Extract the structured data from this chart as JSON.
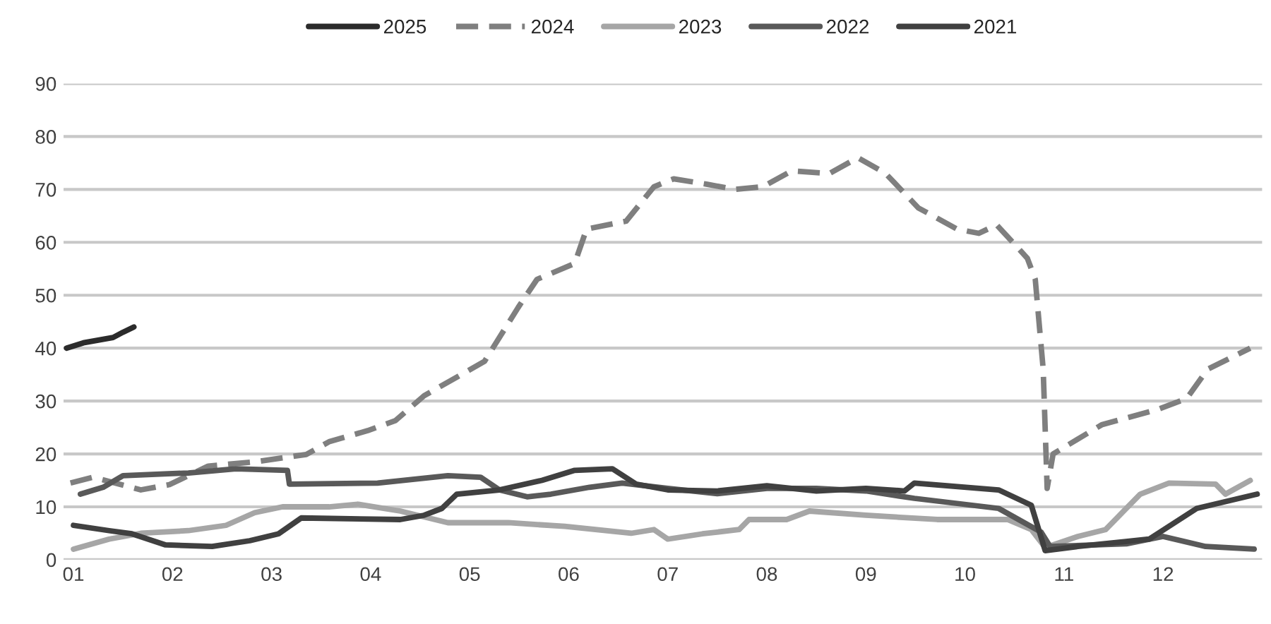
{
  "chart_data": {
    "type": "line",
    "xlim": [
      0.9,
      13.0
    ],
    "xticks": [
      {
        "value": 1,
        "label": "01"
      },
      {
        "value": 2,
        "label": "02"
      },
      {
        "value": 3,
        "label": "03"
      },
      {
        "value": 4,
        "label": "04"
      },
      {
        "value": 5,
        "label": "05"
      },
      {
        "value": 6,
        "label": "06"
      },
      {
        "value": 7,
        "label": "07"
      },
      {
        "value": 8,
        "label": "08"
      },
      {
        "value": 9,
        "label": "09"
      },
      {
        "value": 10,
        "label": "10"
      },
      {
        "value": 11,
        "label": "11"
      },
      {
        "value": 12,
        "label": "12"
      }
    ],
    "ylim": [
      0,
      90
    ],
    "yticks": [
      0,
      10,
      20,
      30,
      40,
      50,
      60,
      70,
      80,
      90
    ],
    "grid": "y",
    "legend": "top",
    "series": [
      {
        "name": "2025",
        "color": "#2b2b2b",
        "line_style": "solid",
        "x": [
          0.93,
          1.1,
          1.25,
          1.4,
          1.5,
          1.61
        ],
        "values": [
          40,
          41,
          41.5,
          42,
          43,
          44
        ]
      },
      {
        "name": "2024",
        "color": "#7f7f7f",
        "line_style": "dashed",
        "x": [
          0.97,
          1.2,
          1.68,
          1.97,
          2.36,
          2.83,
          3.35,
          3.58,
          3.97,
          4.25,
          4.54,
          5.15,
          5.49,
          5.68,
          6.06,
          6.18,
          6.58,
          6.86,
          7.06,
          7.39,
          7.68,
          7.96,
          8.25,
          8.63,
          8.92,
          9.2,
          9.53,
          9.92,
          10.14,
          10.32,
          10.63,
          10.71,
          10.79,
          10.83,
          10.89,
          11.38,
          11.96,
          12.24,
          12.45,
          12.88
        ],
        "values": [
          14.5,
          15.6,
          13.2,
          14.2,
          17.7,
          18.5,
          19.9,
          22.3,
          24.4,
          26.3,
          31,
          37.5,
          47.7,
          53,
          56,
          62.5,
          64,
          70.5,
          72,
          71,
          70,
          70.5,
          73.5,
          73,
          76,
          73,
          66.5,
          62.5,
          61.7,
          63.3,
          57,
          53,
          36,
          13.5,
          20,
          25.5,
          28.5,
          30.5,
          36,
          40
        ]
      },
      {
        "name": "2023",
        "color": "#a6a6a6",
        "line_style": "solid",
        "x": [
          1.0,
          1.36,
          1.68,
          2.16,
          2.54,
          2.83,
          3.11,
          3.58,
          3.87,
          4.3,
          4.78,
          5.39,
          5.96,
          6.63,
          6.86,
          7.0,
          7.35,
          7.72,
          7.82,
          8.2,
          8.43,
          9.0,
          9.72,
          10.43,
          10.67,
          10.81,
          11.14,
          11.42,
          11.77,
          12.06,
          12.53,
          12.63,
          12.88
        ],
        "values": [
          2,
          3.9,
          5,
          5.5,
          6.5,
          8.9,
          10,
          10,
          10.5,
          9.2,
          7,
          7,
          6.3,
          5,
          5.7,
          3.9,
          4.9,
          5.7,
          7.6,
          7.6,
          9.2,
          8.4,
          7.6,
          7.6,
          5.7,
          2.3,
          4.4,
          5.7,
          12.4,
          14.5,
          14.3,
          12.4,
          15
        ]
      },
      {
        "name": "2022",
        "color": "#595959",
        "line_style": "solid",
        "x": [
          1.07,
          1.3,
          1.5,
          2.16,
          2.64,
          3.16,
          3.18,
          4.07,
          4.78,
          5.11,
          5.3,
          5.58,
          5.82,
          6.21,
          6.54,
          7.0,
          7.5,
          8.0,
          8.5,
          9.0,
          9.49,
          10.34,
          10.77,
          10.86,
          11.63,
          12.0,
          12.43,
          12.92
        ],
        "values": [
          12.4,
          13.7,
          15.9,
          16.4,
          17.2,
          16.9,
          14.3,
          14.5,
          15.9,
          15.6,
          13.2,
          11.9,
          12.4,
          13.7,
          14.5,
          13.5,
          12.5,
          13.5,
          13.5,
          13,
          11.6,
          9.7,
          5.2,
          2.5,
          3,
          4.4,
          2.5,
          2
        ]
      },
      {
        "name": "2021",
        "color": "#404040",
        "line_style": "solid",
        "x": [
          1.0,
          1.36,
          1.59,
          1.93,
          2.4,
          2.78,
          3.07,
          3.3,
          4.3,
          4.54,
          4.72,
          4.87,
          5.3,
          5.73,
          6.06,
          6.44,
          6.68,
          7.0,
          7.5,
          8.0,
          8.5,
          9.0,
          9.39,
          9.49,
          10.34,
          10.67,
          10.81,
          11.14,
          11.86,
          12.34,
          12.95
        ],
        "values": [
          6.5,
          5.5,
          4.9,
          2.8,
          2.5,
          3.6,
          4.9,
          7.9,
          7.6,
          8.4,
          9.7,
          12.4,
          13.2,
          15,
          16.9,
          17.2,
          14.3,
          13.2,
          13,
          14,
          13,
          13.5,
          13,
          14.5,
          13.2,
          10.3,
          1.7,
          2.5,
          3.9,
          9.7,
          12.4
        ]
      }
    ]
  }
}
